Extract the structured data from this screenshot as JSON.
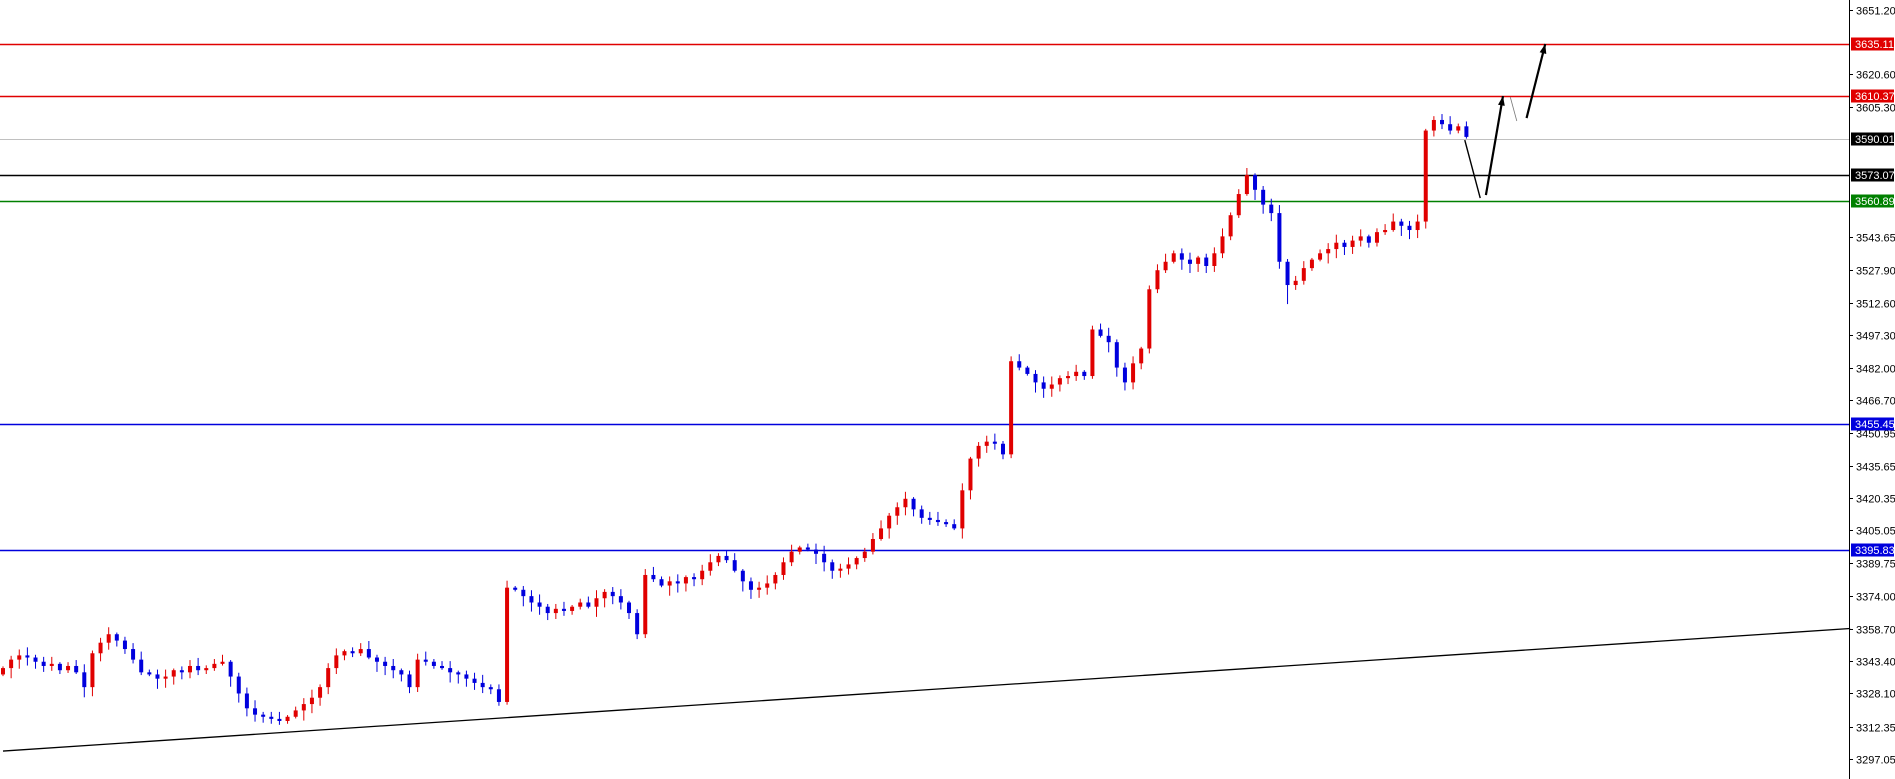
{
  "chart_data": {
    "type": "candlestick",
    "title": "",
    "xlabel": "",
    "ylabel": "",
    "ylim": [
      3297.05,
      3651.2
    ],
    "grid": false,
    "colors": {
      "up": "#e00000",
      "down": "#0000dd",
      "axis": "#000000",
      "background": "#ffffff"
    },
    "y_ticks": [
      "3651.20",
      "3620.60",
      "3605.30",
      "3543.65",
      "3527.90",
      "3512.60",
      "3497.30",
      "3482.00",
      "3466.70",
      "3450.95",
      "3435.65",
      "3420.35",
      "3405.05",
      "3389.75",
      "3374.00",
      "3358.70",
      "3343.40",
      "3328.10",
      "3312.35",
      "3297.05"
    ],
    "price_lines": [
      {
        "value": 3635.11,
        "label": "3635.11",
        "color": "#e00000"
      },
      {
        "value": 3610.37,
        "label": "3610.37",
        "color": "#e00000"
      },
      {
        "value": 3590.01,
        "label": "3590.01",
        "color": "#c0c0c0",
        "badge": "#000000"
      },
      {
        "value": 3573.07,
        "label": "3573.07",
        "color": "#000000"
      },
      {
        "value": 3560.89,
        "label": "3560.89",
        "color": "#008000"
      },
      {
        "value": 3455.45,
        "label": "3455.45",
        "color": "#0000dd"
      },
      {
        "value": 3395.83,
        "label": "3395.83",
        "color": "#0000dd"
      }
    ],
    "trendline": {
      "from": [
        0,
        3300.8
      ],
      "to": [
        227.2,
        3358.7
      ],
      "color": "#000000"
    },
    "projection_arrows": [
      {
        "from": [
          179.8,
          3589.5
        ],
        "to": [
          181.7,
          3562.1
        ],
        "style": "thin"
      },
      {
        "from": [
          182.4,
          3563.5
        ],
        "to": [
          184.5,
          3610.3
        ],
        "style": "bold",
        "head": true
      },
      {
        "from": [
          185.4,
          3609.8
        ],
        "to": [
          186.2,
          3598.5
        ],
        "style": "faint"
      },
      {
        "from": [
          187.4,
          3599.9
        ],
        "to": [
          189.7,
          3634.9
        ],
        "style": "bold",
        "head": true
      }
    ],
    "closes": [
      3340,
      3344,
      3346,
      3345,
      3343,
      3341,
      3342,
      3339,
      3341,
      3338,
      3331,
      3347,
      3352,
      3356,
      3353,
      3349,
      3344,
      3338,
      3337,
      3335,
      3336,
      3339,
      3338,
      3341,
      3339,
      3340,
      3342,
      3343,
      3336,
      3328,
      3321,
      3318,
      3317,
      3316,
      3315,
      3317,
      3320,
      3323,
      3326,
      3331,
      3340,
      3346,
      3348,
      3347,
      3349,
      3345,
      3343,
      3341,
      3339,
      3337,
      3331,
      3344,
      3343,
      3341,
      3340,
      3338,
      3337,
      3335,
      3333,
      3331,
      3330,
      3324,
      3378,
      3377,
      3374,
      3371,
      3369,
      3366,
      3368,
      3367,
      3369,
      3371,
      3369,
      3373,
      3376,
      3374,
      3371,
      3366,
      3356,
      3384,
      3382,
      3379,
      3381,
      3380,
      3383,
      3382,
      3386,
      3390,
      3393,
      3391,
      3386,
      3381,
      3377,
      3378,
      3380,
      3384,
      3390,
      3395,
      3397,
      3396,
      3394,
      3390,
      3386,
      3387,
      3389,
      3392,
      3395,
      3401,
      3406,
      3412,
      3416,
      3420,
      3415,
      3411,
      3410,
      3409,
      3408,
      3406,
      3424,
      3439,
      3445,
      3447,
      3446,
      3441,
      3485,
      3482,
      3479,
      3475,
      3472,
      3474,
      3477,
      3478,
      3480,
      3478,
      3500,
      3497,
      3494,
      3482,
      3475,
      3484,
      3491,
      3519,
      3528,
      3532,
      3536,
      3533,
      3531,
      3534,
      3530,
      3536,
      3544,
      3554,
      3564,
      3573,
      3566,
      3559,
      3555,
      3532,
      3521,
      3523,
      3529,
      3533,
      3536,
      3538,
      3541,
      3539,
      3542,
      3544,
      3541,
      3546,
      3547,
      3551,
      3549,
      3547,
      3551,
      3594,
      3599,
      3597,
      3594,
      3596,
      3591
    ],
    "open_first": 3337
  }
}
